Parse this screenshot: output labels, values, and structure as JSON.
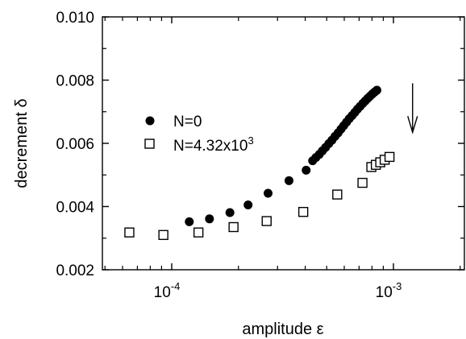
{
  "chart_data": {
    "type": "scatter",
    "xlabel": "amplitude ε",
    "ylabel": "decrement δ",
    "xscale": "log",
    "xlim": [
      5e-05,
      0.002
    ],
    "ylim": [
      0.002,
      0.01
    ],
    "grid": false,
    "legend_position": "left",
    "y_ticks": [
      "0.002",
      "0.004",
      "0.006",
      "0.008",
      "0.010"
    ],
    "x_ticks": [
      {
        "base": "10",
        "exp": "-4"
      },
      {
        "base": "10",
        "exp": "-3"
      }
    ],
    "series": [
      {
        "name": "N=0",
        "marker": "filled-circle",
        "color": "#000000",
        "x": [
          0.00012,
          0.000148,
          0.000183,
          0.000221,
          0.000272,
          0.000338,
          0.000404,
          0.000432,
          0.000447,
          0.000463,
          0.000478,
          0.000494,
          0.000511,
          0.000528,
          0.000545,
          0.000563,
          0.00058,
          0.000597,
          0.000614,
          0.000632,
          0.000651,
          0.00067,
          0.000688,
          0.000707,
          0.000727,
          0.000746,
          0.000765,
          0.000784,
          0.000803,
          0.000822,
          0.000842
        ],
        "y": [
          0.00352,
          0.00361,
          0.00381,
          0.00405,
          0.00442,
          0.00482,
          0.00515,
          0.00545,
          0.00555,
          0.00565,
          0.00576,
          0.00587,
          0.00599,
          0.0061,
          0.00622,
          0.00633,
          0.00645,
          0.00656,
          0.00667,
          0.00678,
          0.00688,
          0.00698,
          0.00708,
          0.00717,
          0.00726,
          0.00734,
          0.00742,
          0.00749,
          0.00756,
          0.00762,
          0.00768
        ]
      },
      {
        "name": "N=4.32x10³",
        "marker": "open-square",
        "color": "#000000",
        "x": [
          6.44e-05,
          9.17e-05,
          0.000132,
          0.00019,
          0.000268,
          0.000392,
          0.000558,
          0.000725,
          0.000795,
          0.000833,
          0.000872,
          0.000913,
          0.00096
        ],
        "y": [
          0.00318,
          0.0031,
          0.00318,
          0.00335,
          0.00354,
          0.00383,
          0.00438,
          0.00475,
          0.00525,
          0.00532,
          0.0054,
          0.00548,
          0.00557
        ]
      }
    ],
    "legend": [
      {
        "label": "N=0",
        "marker": "filled-circle"
      },
      {
        "label_base": "N=4.32x10",
        "label_exp": "3",
        "marker": "open-square"
      }
    ],
    "annotations": [
      {
        "type": "arrow",
        "direction": "down",
        "x": 0.00122,
        "y_from": 0.0079,
        "y_to": 0.00635
      }
    ]
  }
}
